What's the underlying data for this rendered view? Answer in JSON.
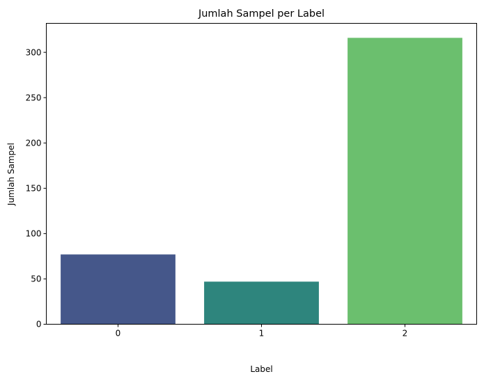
{
  "chart_data": {
    "type": "bar",
    "title": "Jumlah Sampel per Label",
    "xlabel": "Label",
    "ylabel": "Jumlah Sampel",
    "categories": [
      "0",
      "1",
      "2"
    ],
    "values": [
      77,
      47,
      316
    ],
    "colors": [
      "#45578a",
      "#2e857d",
      "#6bbf6e"
    ],
    "ylim": [
      0,
      332
    ],
    "yticks": [
      0,
      50,
      100,
      150,
      200,
      250,
      300
    ],
    "grid": false,
    "legend": "none"
  }
}
